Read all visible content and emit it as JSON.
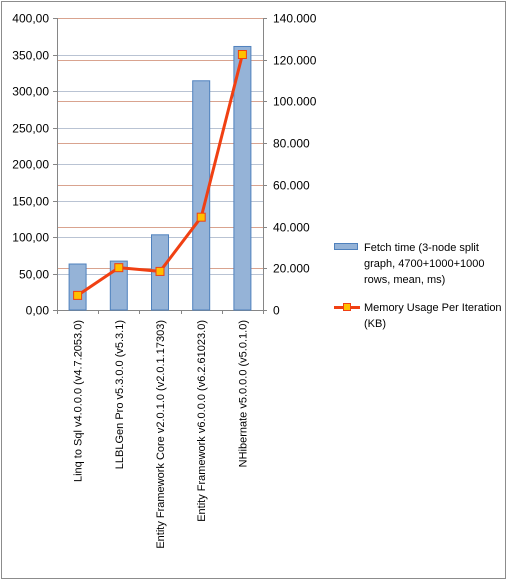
{
  "chart_data": {
    "type": "bar",
    "categories": [
      "Linq to Sql v4.0.0.0 (v4.7.2053.0)",
      "LLBLGen Pro v5.3.0.0 (v5.3.1)",
      "Entity Framework Core v2.0.1.0 (v2.0.1.17303)",
      "Entity Framework v6.0.0.0 (v6.2.61023.0)",
      "NHibernate v5.0.0.0 (v5.0.1.0)"
    ],
    "series": [
      {
        "name": "Fetch time (3-node split graph, 4700+1000+1000 rows, mean, ms)",
        "kind": "bar",
        "axis": "left",
        "values": [
          63,
          67,
          103,
          314,
          361
        ],
        "color": "#95b3d7",
        "border": "#4f81bd"
      },
      {
        "name": "Memory Usage Per Iteration (KB)",
        "kind": "line",
        "axis": "right",
        "values": [
          7000,
          20300,
          18500,
          44500,
          122500
        ],
        "color": "#f04013",
        "marker_color": "#ffc000"
      }
    ],
    "y_left": {
      "ylim": [
        0,
        400
      ],
      "ticks": [
        "0,00",
        "50,00",
        "100,00",
        "150,00",
        "200,00",
        "250,00",
        "300,00",
        "350,00",
        "400,00"
      ]
    },
    "y_right": {
      "ylim": [
        0,
        140000
      ],
      "ticks": [
        "0",
        "20.000",
        "40.000",
        "60.000",
        "80.000",
        "100.000",
        "120.000",
        "140.000"
      ]
    },
    "grid": true,
    "legend_position": "right"
  }
}
